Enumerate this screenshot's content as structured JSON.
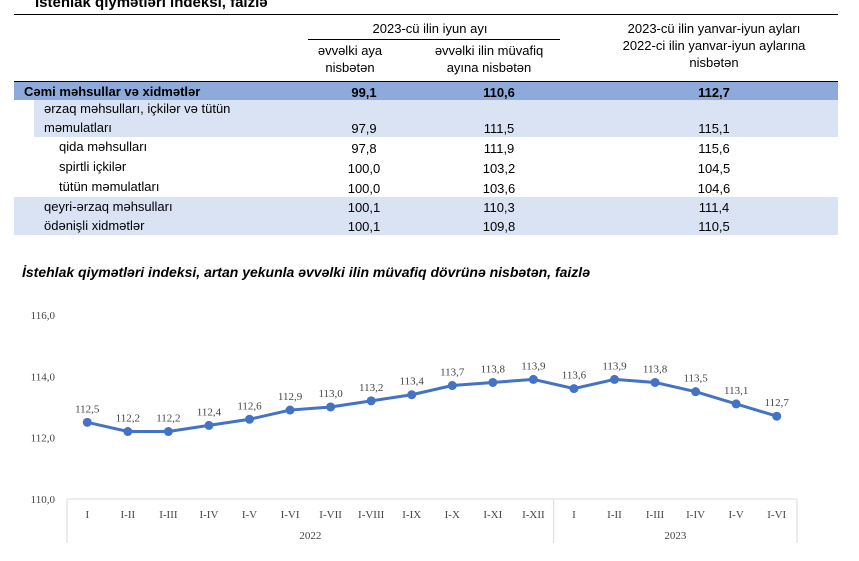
{
  "table": {
    "title": "İstehlak qiymətləri indeksi, faizlə",
    "group1": "2023-cü ilin iyun ayı",
    "col1": [
      "əvvəlki aya",
      "nisbətən"
    ],
    "col2": [
      "əvvəlki ilin müvafiq",
      "ayına nisbətən"
    ],
    "col3": [
      "2023-cü ilin yanvar-iyun ayları",
      "2022-ci ilin yanvar-iyun aylarına",
      "nisbətən"
    ],
    "rows": [
      {
        "label": "Cəmi məhsullar və xidmətlər",
        "v1": "99,1",
        "v2": "110,6",
        "v3": "112,7"
      },
      {
        "label": "ərzaq məhsulları, içkilər və tütün",
        "label2": "məmulatları",
        "v1": "97,9",
        "v2": "111,5",
        "v3": "115,1"
      },
      {
        "label": "qida məhsulları",
        "v1": "97,8",
        "v2": "111,9",
        "v3": "115,6"
      },
      {
        "label": "spirtli içkilər",
        "v1": "100,0",
        "v2": "103,2",
        "v3": "104,5"
      },
      {
        "label": "tütün məmulatları",
        "v1": "100,0",
        "v2": "103,6",
        "v3": "104,6"
      },
      {
        "label": "qeyri-ərzaq məhsulları",
        "v1": "100,1",
        "v2": "110,3",
        "v3": "111,4"
      },
      {
        "label": "ödənişli xidmətlər",
        "v1": "100,1",
        "v2": "109,8",
        "v3": "110,5"
      }
    ]
  },
  "colors": {
    "total_row": "#8eaadb",
    "light_row": "#dae3f3",
    "line": "#4472c4"
  },
  "chart_data": {
    "type": "line",
    "title": "İstehlak qiymətləri indeksi, artan yekunla əvvəlki ilin müvafiq dövrünə nisbətən, faizlə",
    "categories": [
      "I",
      "I-II",
      "I-III",
      "I-IV",
      "I-V",
      "I-VI",
      "I-VII",
      "I-VIII",
      "I-IX",
      "I-X",
      "I-XI",
      "I-XII",
      "I",
      "I-II",
      "I-III",
      "I-IV",
      "I-V",
      "I-VI"
    ],
    "groups": [
      {
        "label": "2022",
        "count": 12
      },
      {
        "label": "2023",
        "count": 6
      }
    ],
    "values": [
      112.5,
      112.2,
      112.2,
      112.4,
      112.6,
      112.9,
      113.0,
      113.2,
      113.4,
      113.7,
      113.8,
      113.9,
      113.6,
      113.9,
      113.8,
      113.5,
      113.1,
      112.7
    ],
    "labels": [
      "112,5",
      "112,2",
      "112,2",
      "112,4",
      "112,6",
      "112,9",
      "113,0",
      "113,2",
      "113,4",
      "113,7",
      "113,8",
      "113,9",
      "113,6",
      "113,9",
      "113,8",
      "113,5",
      "113,1",
      "112,7"
    ],
    "yticks": [
      "110,0",
      "112,0",
      "114,0",
      "116,0"
    ],
    "ylim": [
      110,
      116
    ],
    "grid": false,
    "legend": "none"
  }
}
